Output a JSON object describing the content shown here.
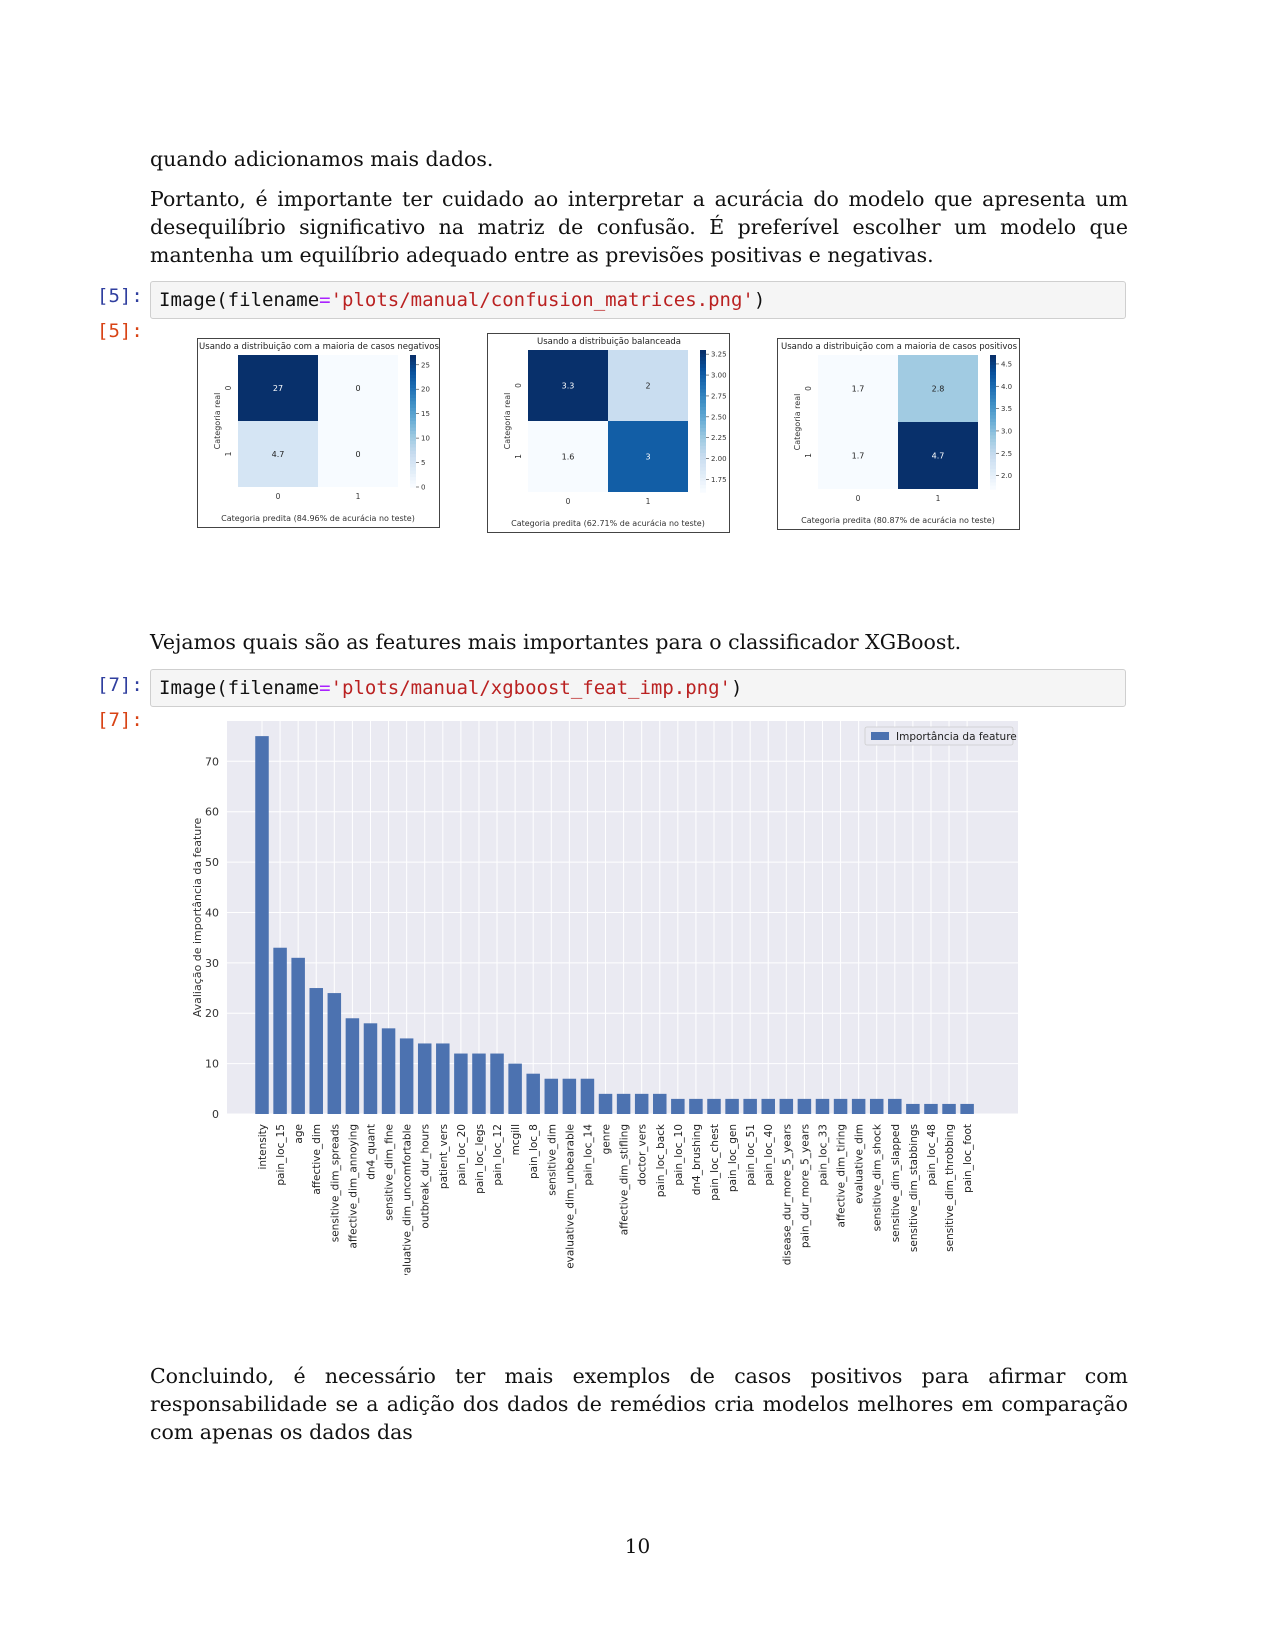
{
  "paragraphs": {
    "p1": "quando adicionamos mais dados.",
    "p2": "Portanto, é importante ter cuidado ao interpretar a acurácia do modelo que apresenta um desequilíbrio significativo na matriz de confusão. É preferível escolher um modelo que mantenha um equilíbrio adequado entre as previsões positivas e negativas.",
    "p3": "Vejamos quais são as features mais importantes para o classificador XGBoost.",
    "p4": "Concluindo, é necessário ter mais exemplos de casos positivos para afirmar com responsabilidade se a adição dos dados de remédios cria modelos melhores em comparação com apenas os dados das"
  },
  "cells": [
    {
      "in_prompt": "[5]:",
      "out_prompt": "[5]:",
      "code_fn": "Image(filename",
      "code_eq": "=",
      "code_str": "'plots/manual/confusion_matrices.png'",
      "code_end": ")"
    },
    {
      "in_prompt": "[7]:",
      "out_prompt": "[7]:",
      "code_fn": "Image(filename",
      "code_eq": "=",
      "code_str": "'plots/manual/xgboost_feat_imp.png'",
      "code_end": ")"
    }
  ],
  "page_number": "10",
  "chart_data": [
    {
      "type": "heatmap",
      "title": "Usando a distribuição com a maioria de casos negativos",
      "xlabel": "Categoria predita (84.96% de acurácia no teste)",
      "ylabel": "Categoria real",
      "x_ticks": [
        "0",
        "1"
      ],
      "y_ticks": [
        "0",
        "1"
      ],
      "values": [
        [
          27,
          0
        ],
        [
          4.7,
          0
        ]
      ],
      "labels": [
        [
          "27",
          "0"
        ],
        [
          "4.7",
          "0"
        ]
      ],
      "colorbar_range": [
        0,
        27
      ],
      "colorbar_ticks": [
        "0",
        "5",
        "10",
        "15",
        "20",
        "25"
      ],
      "colorbar_values": [
        0,
        5,
        10,
        15,
        20,
        25
      ],
      "colormap": "Blues"
    },
    {
      "type": "heatmap",
      "title": "Usando a distribuição balanceada",
      "xlabel": "Categoria predita (62.71% de acurácia no teste)",
      "ylabel": "Categoria real",
      "x_ticks": [
        "0",
        "1"
      ],
      "y_ticks": [
        "0",
        "1"
      ],
      "values": [
        [
          3.3,
          2
        ],
        [
          1.6,
          3
        ]
      ],
      "labels": [
        [
          "3.3",
          "2"
        ],
        [
          "1.6",
          "3"
        ]
      ],
      "colorbar_range": [
        1.6,
        3.3
      ],
      "colorbar_ticks": [
        "1.75",
        "2.00",
        "2.25",
        "2.50",
        "2.75",
        "3.00",
        "3.25"
      ],
      "colorbar_values": [
        1.75,
        2.0,
        2.25,
        2.5,
        2.75,
        3.0,
        3.25
      ],
      "colormap": "Blues"
    },
    {
      "type": "heatmap",
      "title": "Usando a distribuição com a maioria de casos positivos",
      "xlabel": "Categoria predita (80.87% de acurácia no teste)",
      "ylabel": "Categoria real",
      "x_ticks": [
        "0",
        "1"
      ],
      "y_ticks": [
        "0",
        "1"
      ],
      "values": [
        [
          1.7,
          2.8
        ],
        [
          1.7,
          4.7
        ]
      ],
      "labels": [
        [
          "1.7",
          "2.8"
        ],
        [
          "1.7",
          "4.7"
        ]
      ],
      "colorbar_range": [
        1.7,
        4.7
      ],
      "colorbar_ticks": [
        "2.0",
        "2.5",
        "3.0",
        "3.5",
        "4.0",
        "4.5"
      ],
      "colorbar_values": [
        2.0,
        2.5,
        3.0,
        3.5,
        4.0,
        4.5
      ],
      "colormap": "Blues"
    },
    {
      "type": "bar",
      "ylabel": "Avaliação de importância da feature",
      "legend": "Importância da feature",
      "legend_position": "top-right",
      "grid": true,
      "ylim": [
        0,
        78
      ],
      "yticks": [
        0,
        10,
        20,
        30,
        40,
        50,
        60,
        70
      ],
      "bar_color": "#4c72b0",
      "categories": [
        "intensity",
        "pain_loc_15",
        "age",
        "affective_dim",
        "sensitive_dim_spreads",
        "affective_dim_annoying",
        "dn4_quant",
        "sensitive_dim_fine",
        "evaluative_dim_uncomfortable",
        "outbreak_dur_hours",
        "patient_vers",
        "pain_loc_20",
        "pain_loc_legs",
        "pain_loc_12",
        "mcgill",
        "pain_loc_8",
        "sensitive_dim",
        "evaluative_dim_unbearable",
        "pain_loc_14",
        "genre",
        "affective_dim_stifling",
        "doctor_vers",
        "pain_loc_back",
        "pain_loc_10",
        "dn4_brushing",
        "pain_loc_chest",
        "pain_loc_gen",
        "pain_loc_51",
        "pain_loc_40",
        "disease_dur_more_5_years",
        "pain_dur_more_5_years",
        "pain_loc_33",
        "affective_dim_tiring",
        "evaluative_dim",
        "sensitive_dim_shock",
        "sensitive_dim_slapped",
        "sensitive_dim_stabbings",
        "pain_loc_48",
        "sensitive_dim_throbbing",
        "pain_loc_foot"
      ],
      "values": [
        75,
        33,
        31,
        25,
        24,
        19,
        18,
        17,
        15,
        14,
        14,
        12,
        12,
        12,
        10,
        8,
        7,
        7,
        7,
        4,
        4,
        4,
        4,
        3,
        3,
        3,
        3,
        3,
        3,
        3,
        3,
        3,
        3,
        3,
        3,
        3,
        2,
        2,
        2,
        2
      ]
    }
  ]
}
